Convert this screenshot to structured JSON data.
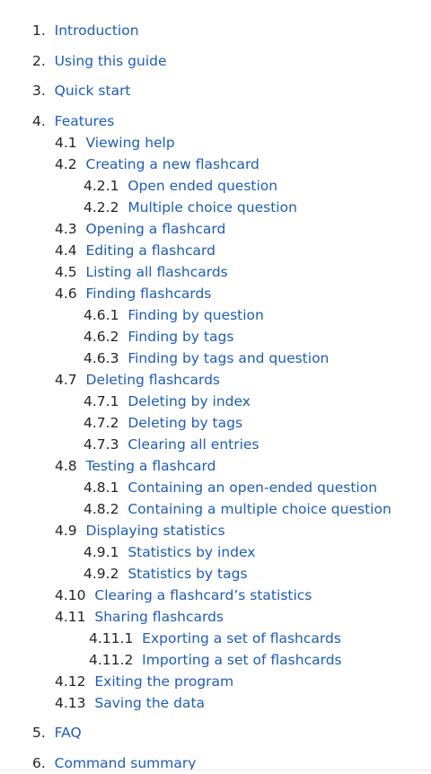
{
  "toc": [
    {
      "number": "1.",
      "title": "Introduction"
    },
    {
      "number": "2.",
      "title": "Using this guide"
    },
    {
      "number": "3.",
      "title": "Quick start"
    },
    {
      "number": "4.",
      "title": "Features"
    },
    {
      "number": "4.1",
      "title": "Viewing help"
    },
    {
      "number": "4.2",
      "title": "Creating a new flashcard"
    },
    {
      "number": "4.2.1",
      "title": "Open ended question"
    },
    {
      "number": "4.2.2",
      "title": "Multiple choice question"
    },
    {
      "number": "4.3",
      "title": "Opening a flashcard"
    },
    {
      "number": "4.4",
      "title": "Editing a flashcard"
    },
    {
      "number": "4.5",
      "title": "Listing all flashcards"
    },
    {
      "number": "4.6",
      "title": "Finding flashcards"
    },
    {
      "number": "4.6.1",
      "title": "Finding by question"
    },
    {
      "number": "4.6.2",
      "title": "Finding by tags"
    },
    {
      "number": "4.6.3",
      "title": "Finding by tags and question"
    },
    {
      "number": "4.7",
      "title": "Deleting flashcards"
    },
    {
      "number": "4.7.1",
      "title": "Deleting by index"
    },
    {
      "number": "4.7.2",
      "title": "Deleting by tags"
    },
    {
      "number": "4.7.3",
      "title": "Clearing all entries"
    },
    {
      "number": "4.8",
      "title": "Testing a flashcard"
    },
    {
      "number": "4.8.1",
      "title": "Containing an open-ended question"
    },
    {
      "number": "4.8.2",
      "title": "Containing a multiple choice question"
    },
    {
      "number": "4.9",
      "title": "Displaying statistics"
    },
    {
      "number": "4.9.1",
      "title": "Statistics by index"
    },
    {
      "number": "4.9.2",
      "title": "Statistics by tags"
    },
    {
      "number": "4.10",
      "title": "Clearing a flashcard’s statistics"
    },
    {
      "number": "4.11",
      "title": "Sharing flashcards"
    },
    {
      "number": "4.11.1",
      "title": "Exporting a set of flashcards"
    },
    {
      "number": "4.11.2",
      "title": "Importing a set of flashcards"
    },
    {
      "number": "4.12",
      "title": "Exiting the program"
    },
    {
      "number": "4.13",
      "title": "Saving the data"
    },
    {
      "number": "5.",
      "title": "FAQ"
    },
    {
      "number": "6.",
      "title": "Command summary"
    }
  ]
}
